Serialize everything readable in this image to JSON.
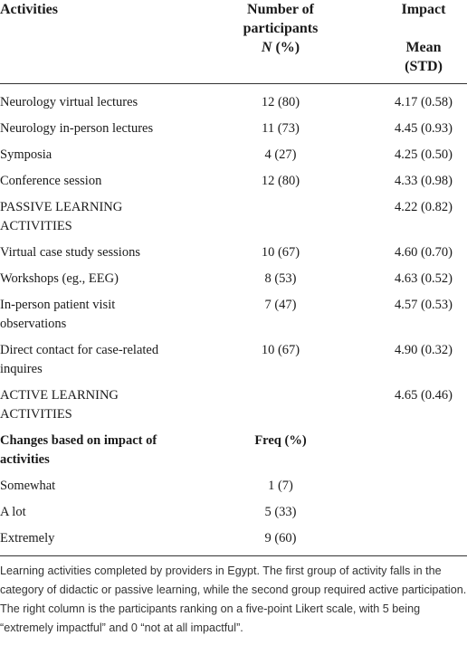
{
  "header": {
    "activities": "Activities",
    "participants": {
      "line1": "Number of",
      "line2": "participants",
      "n": "N",
      "pct": "(%)"
    },
    "impact": {
      "line1": "Impact",
      "line2": "Mean",
      "line3": "(STD)"
    }
  },
  "rows": [
    {
      "activity": "Neurology virtual lectures",
      "participants": "12 (80)",
      "impact": "4.17 (0.58)"
    },
    {
      "activity": "Neurology in-person lectures",
      "participants": "11 (73)",
      "impact": "4.45 (0.93)"
    },
    {
      "activity": "Symposia",
      "participants": "4 (27)",
      "impact": "4.25 (0.50)"
    },
    {
      "activity": "Conference session",
      "participants": "12 (80)",
      "impact": "4.33 (0.98)"
    },
    {
      "activity": "PASSIVE LEARNING ACTIVITIES",
      "impact": "4.22 (0.82)"
    },
    {
      "activity": "Virtual case study sessions",
      "participants": "10 (67)",
      "impact": "4.60 (0.70)"
    },
    {
      "activity": "Workshops (eg., EEG)",
      "participants": "8 (53)",
      "impact": "4.63 (0.52)"
    },
    {
      "activity": "In-person patient visit observations",
      "participants": "7 (47)",
      "impact": "4.57 (0.53)"
    },
    {
      "activity": "Direct contact for case-related inquires",
      "participants": "10 (67)",
      "impact": "4.90 (0.32)"
    },
    {
      "activity": "ACTIVE LEARNING ACTIVITIES",
      "impact": "4.65 (0.46)"
    }
  ],
  "subheader": {
    "label": "Changes based on impact of activities",
    "freq": "Freq (%)"
  },
  "changes": [
    {
      "label": "Somewhat",
      "freq": "1 (7)"
    },
    {
      "label": "A lot",
      "freq": "5 (33)"
    },
    {
      "label": "Extremely",
      "freq": "9 (60)"
    }
  ],
  "caption": "Learning activities completed by providers in Egypt. The first group of activity falls in the category of didactic or passive learning, while the second group required active participation. The right column is the participants ranking on a five-point Likert scale, with 5 being “extremely impactful” and 0 “not at all impactful”."
}
